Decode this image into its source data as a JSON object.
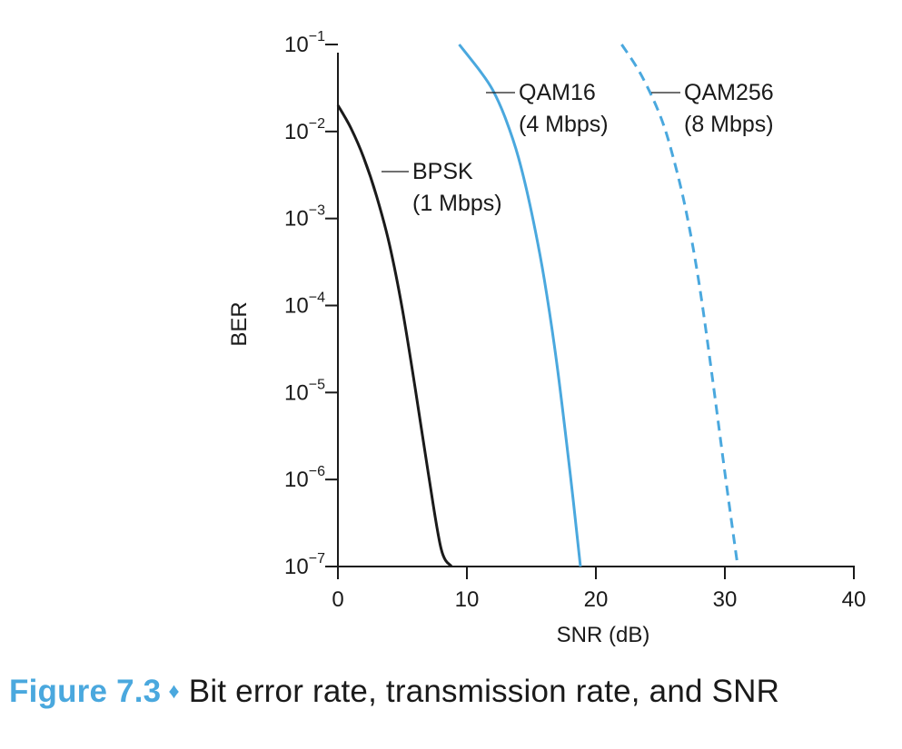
{
  "chart_data": {
    "type": "line",
    "xlabel": "SNR (dB)",
    "ylabel": "BER",
    "xlim": [
      0,
      40
    ],
    "ylim": [
      1e-07,
      0.1
    ],
    "yscale": "log",
    "x_ticks": [
      0,
      10,
      20,
      30,
      40
    ],
    "x_tick_labels": [
      "0",
      "10",
      "20",
      "30",
      "40"
    ],
    "y_ticks": [
      {
        "value": 0.1,
        "base": "10",
        "exp": "−1"
      },
      {
        "value": 0.01,
        "base": "10",
        "exp": "−2"
      },
      {
        "value": 0.001,
        "base": "10",
        "exp": "−3"
      },
      {
        "value": 0.0001,
        "base": "10",
        "exp": "−4"
      },
      {
        "value": 1e-05,
        "base": "10",
        "exp": "−5"
      },
      {
        "value": 1e-06,
        "base": "10",
        "exp": "−6"
      },
      {
        "value": 1e-07,
        "base": "10",
        "exp": "−7"
      }
    ],
    "grid": false,
    "series": [
      {
        "name": "BPSK",
        "rate": "(1 Mbps)",
        "color": "#1a1a1a",
        "dashed": false,
        "points": [
          [
            0,
            0.02
          ],
          [
            1,
            0.011
          ],
          [
            2,
            0.005
          ],
          [
            3,
            0.0018
          ],
          [
            4,
            0.0005
          ],
          [
            5,
            9e-05
          ],
          [
            6,
            1.1e-05
          ],
          [
            7,
            1.2e-06
          ],
          [
            8,
            1.6e-07
          ],
          [
            8.8,
            1e-07
          ]
        ]
      },
      {
        "name": "QAM16",
        "rate": "(4 Mbps)",
        "color": "#4aa8de",
        "dashed": false,
        "points": [
          [
            9.4,
            0.1
          ],
          [
            11,
            0.05
          ],
          [
            12,
            0.03
          ],
          [
            13,
            0.014
          ],
          [
            14,
            0.005
          ],
          [
            15,
            0.0012
          ],
          [
            16,
            0.0002
          ],
          [
            17,
            2e-05
          ],
          [
            18,
            1.2e-06
          ],
          [
            18.8,
            1e-07
          ]
        ]
      },
      {
        "name": "QAM256",
        "rate": "(8 Mbps)",
        "color": "#4aa8de",
        "dashed": true,
        "points": [
          [
            22,
            0.1
          ],
          [
            23.5,
            0.045
          ],
          [
            25,
            0.015
          ],
          [
            26,
            0.005
          ],
          [
            27,
            0.0012
          ],
          [
            28,
            0.00018
          ],
          [
            29,
            1.6e-05
          ],
          [
            30,
            1.2e-06
          ],
          [
            31,
            1e-07
          ]
        ]
      }
    ]
  },
  "caption": {
    "label": "Figure 7.3",
    "separator": "♦",
    "text": "Bit error rate, transmission rate, and SNR"
  }
}
